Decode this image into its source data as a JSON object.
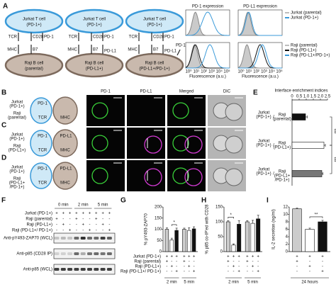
{
  "panel_letters": [
    "A",
    "B",
    "C",
    "D",
    "E",
    "F",
    "G",
    "H",
    "I"
  ],
  "panel_a": {
    "t_cell": [
      "Jurkat T cell",
      "(PD-1+)"
    ],
    "b_cells": [
      [
        "Raji B cell",
        "(parental)"
      ],
      [
        "Raji B cell",
        "(PD-L1+)"
      ],
      [
        "Raji B cell",
        "(PD-L1+/PD-1+)"
      ]
    ],
    "molecules": [
      "TCR",
      "CD28",
      "PD-1",
      "MHC",
      "B7",
      "PD-L1"
    ],
    "flow": {
      "titles": [
        "PD-1 expression",
        "PD-L1 expression"
      ],
      "legend_top": [
        {
          "name": "Jurkat (parental)",
          "color": "#bdbdbd"
        },
        {
          "name": "Jurkat (PD-1+)",
          "color": "#3a9ad9"
        }
      ],
      "legend_bottom": [
        {
          "name": "Raji (parental)",
          "color": "#bdbdbd"
        },
        {
          "name": "Raji (PD-L1+)",
          "color": "#111111"
        },
        {
          "name": "Raji (PD-L1+/PD-1+)",
          "color": "#3a9ad9"
        }
      ],
      "xticks": [
        "10⁰",
        "10¹",
        "10²",
        "10³",
        "10⁴",
        "10⁵"
      ],
      "xlabel": "Fluorescence (a.u.)"
    }
  },
  "panel_bcd": {
    "columns": [
      "PD-1",
      "PD-L1",
      "Merged",
      "DIC"
    ],
    "rows": [
      {
        "t": [
          "Jurkat",
          "(PD-1+)"
        ],
        "b": [
          "Raji",
          "(parental)"
        ]
      },
      {
        "t": [
          "Jurkat",
          "(PD-1+)"
        ],
        "b": [
          "Raji",
          "(PD-L1+)"
        ]
      },
      {
        "t": [
          "Jurkat",
          "(PD-1+)"
        ],
        "b": [
          "Raji",
          "(PD-L1+",
          "/PD-1+)"
        ]
      }
    ],
    "molecules": [
      "TCR",
      "MHC",
      "PD-1",
      "PD-L1"
    ]
  },
  "panel_f": {
    "times": [
      "0 min",
      "2 min",
      "5 min"
    ],
    "conditions": [
      "Jurkat (PD-1+)",
      "Raji (parental)",
      "Raji (PD-L1+)",
      "Raji (PD-L1+/ PD-1+)"
    ],
    "signs": [
      [
        "+",
        "+",
        "+",
        "+",
        "+",
        "+",
        "+",
        "+",
        "+"
      ],
      [
        "+",
        "-",
        "-",
        "+",
        "-",
        "-",
        "+",
        "-",
        "-"
      ],
      [
        "-",
        "+",
        "-",
        "-",
        "+",
        "-",
        "-",
        "+",
        "-"
      ],
      [
        "-",
        "-",
        "+",
        "-",
        "-",
        "+",
        "-",
        "-",
        "+"
      ]
    ],
    "blots": [
      "Anti-pY493-ZAP70 (WCL)",
      "Anti-p85 (CD28 IP)",
      "Anti-p85 (WCL)"
    ]
  },
  "chart_data": [
    {
      "type": "hbar",
      "title": "Interface enrichment indices",
      "categories": [
        {
          "t": [
            "Jurkat",
            "(PD-1+)"
          ],
          "b": [
            "Raji",
            "(parental)"
          ]
        },
        {
          "t": [
            "Jurkat",
            "(PD-1+)"
          ],
          "b": [
            "Raji",
            "(PD-L1+)"
          ]
        },
        {
          "t": [
            "Jurkat",
            "(PD-1+)"
          ],
          "b": [
            "Raji",
            "(PD-L1+",
            "/PD-1+)"
          ]
        }
      ],
      "separator": "/",
      "values": [
        0.95,
        2.25,
        2.1
      ],
      "errors": [
        0.12,
        0.1,
        0.08
      ],
      "colors": [
        "#111111",
        "#ffffff",
        "#777777"
      ],
      "xlim": [
        0,
        2.5
      ],
      "xticks": [
        0,
        0.5,
        {
          "value": 1,
          "label": "1.0"
        },
        1.5,
        {
          "value": 2,
          "label": "2.0"
        },
        2.5
      ],
      "significance": [
        {
          "text": "***",
          "bars": [
            0,
            1
          ]
        },
        {
          "text": "***",
          "bars": [
            1,
            2
          ]
        }
      ]
    },
    {
      "type": "bar",
      "ylabel": "% pY493-ZAP70",
      "groups": [
        "2 min",
        "5 min"
      ],
      "values": [
        100,
        52,
        95,
        100,
        95,
        102
      ],
      "errors": [
        6,
        8,
        10,
        5,
        12,
        9
      ],
      "colors": [
        "#cccccc",
        "#ffffff",
        "#111111",
        "#cccccc",
        "#ffffff",
        "#111111"
      ],
      "ylim": [
        0,
        200
      ],
      "yticks": [
        0,
        50,
        100,
        150,
        200
      ],
      "conditions": [
        "Jurkat (PD-1+)",
        "Raji (parental)",
        "Raji (PD-L1+)",
        "Raji (PD-L1+/ PD-1+)"
      ],
      "signs": [
        [
          "+",
          "+",
          "+",
          "+",
          "+",
          "+"
        ],
        [
          "+",
          "-",
          "-",
          "+",
          "-",
          "-"
        ],
        [
          "-",
          "+",
          "-",
          "-",
          "+",
          "-"
        ],
        [
          "-",
          "-",
          "+",
          "-",
          "-",
          "+"
        ]
      ],
      "significance": [
        {
          "text": "*",
          "bars": [
            1,
            2
          ]
        }
      ]
    },
    {
      "type": "bar",
      "ylabel": "% p85 co-IP'ed with CD28",
      "groups": [
        "2 min",
        "5 min"
      ],
      "values": [
        100,
        22,
        92,
        100,
        95,
        110
      ],
      "errors": [
        4,
        4,
        12,
        4,
        10,
        12
      ],
      "colors": [
        "#cccccc",
        "#ffffff",
        "#111111",
        "#cccccc",
        "#ffffff",
        "#111111"
      ],
      "ylim": [
        0,
        150
      ],
      "yticks": [
        0,
        50,
        100,
        150
      ],
      "signs": [
        [
          "+",
          "+",
          "+",
          "+",
          "+",
          "+"
        ],
        [
          "+",
          "-",
          "-",
          "+",
          "-",
          "-"
        ],
        [
          "-",
          "+",
          "-",
          "-",
          "+",
          "-"
        ],
        [
          "-",
          "-",
          "+",
          "-",
          "-",
          "+"
        ]
      ],
      "significance": [
        {
          "text": "*",
          "bars": [
            0,
            1
          ]
        }
      ]
    },
    {
      "type": "bar",
      "ylabel": "IL-2 secretion (ng/ml)",
      "groups": [
        "24 hours"
      ],
      "values": [
        11.5,
        6,
        8
      ],
      "errors": [
        0.2,
        0.3,
        0.4
      ],
      "colors": [
        "#cccccc",
        "#ffffff",
        "#111111"
      ],
      "ylim": [
        0,
        12
      ],
      "yticks": [
        0,
        2,
        4,
        6,
        8,
        10,
        12
      ],
      "signs": [
        [
          "+",
          "+",
          "+"
        ],
        [
          "+",
          "-",
          "-"
        ],
        [
          "-",
          "+",
          "-"
        ],
        [
          "-",
          "-",
          "+"
        ]
      ],
      "significance": [
        {
          "text": "**",
          "bars": [
            1,
            2
          ]
        }
      ]
    }
  ]
}
